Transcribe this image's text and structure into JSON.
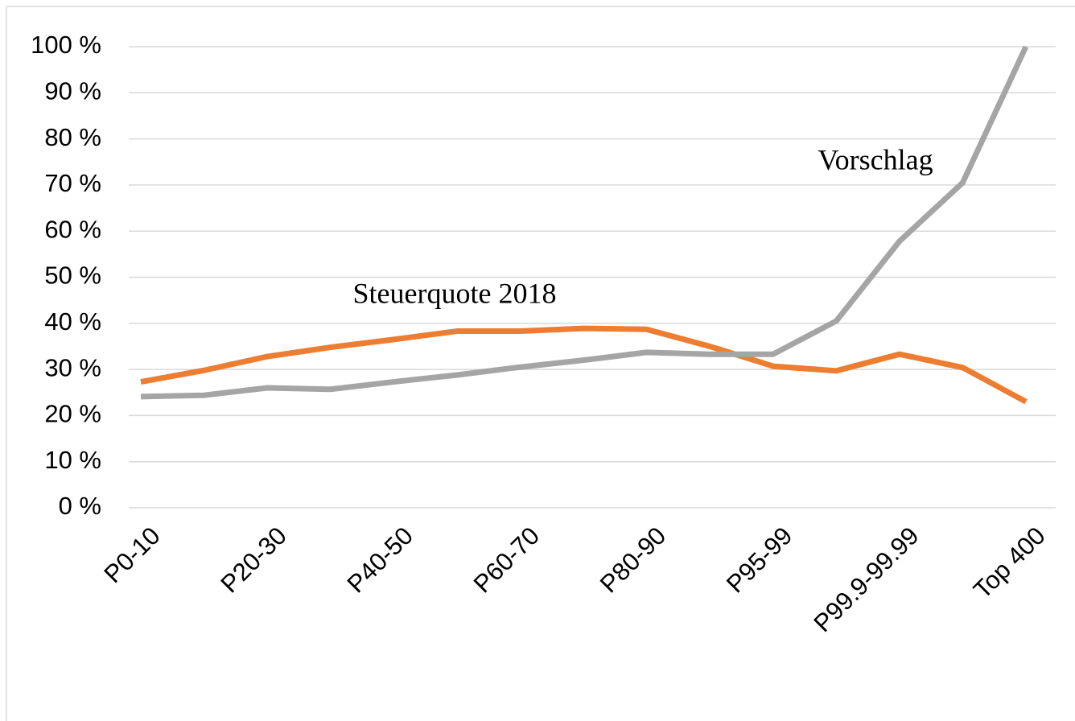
{
  "chart_data": {
    "type": "line",
    "categories": [
      "P0-10",
      null,
      "P20-30",
      null,
      "P40-50",
      null,
      "P60-70",
      null,
      "P80-90",
      null,
      "P95-99",
      null,
      "P99.9-99.99",
      null,
      "Top 400"
    ],
    "series": [
      {
        "name": "Steuerquote 2018",
        "color": "#ed7d31",
        "values": [
          27.3,
          29.8,
          32.8,
          34.8,
          36.5,
          38.3,
          38.3,
          38.9,
          38.7,
          35,
          30.7,
          29.7,
          33.3,
          30.4,
          23
        ]
      },
      {
        "name": "Vorschlag",
        "color": "#a5a5a5",
        "values": [
          24.1,
          24.4,
          26,
          25.7,
          27.3,
          28.8,
          30.5,
          32,
          33.7,
          33.3,
          33.3,
          40.5,
          57.8,
          70.5,
          100
        ]
      }
    ],
    "ylim": [
      0,
      100
    ],
    "yticks": [
      {
        "value": 0,
        "label": "0 %"
      },
      {
        "value": 10,
        "label": "10 %"
      },
      {
        "value": 20,
        "label": "20 %"
      },
      {
        "value": 30,
        "label": "30 %"
      },
      {
        "value": 40,
        "label": "40 %"
      },
      {
        "value": 50,
        "label": "50 %"
      },
      {
        "value": 60,
        "label": "60 %"
      },
      {
        "value": 70,
        "label": "70 %"
      },
      {
        "value": 80,
        "label": "80 %"
      },
      {
        "value": 90,
        "label": "90 %"
      },
      {
        "value": 100,
        "label": "100 %"
      }
    ],
    "grid": true
  }
}
